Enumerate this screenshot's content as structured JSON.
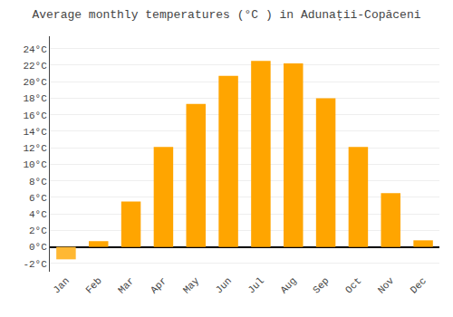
{
  "chart_data": {
    "type": "bar",
    "title": "Average monthly temperatures (°C ) in Adunații-Copăceni",
    "categories": [
      "Jan",
      "Feb",
      "Mar",
      "Apr",
      "May",
      "Jun",
      "Jul",
      "Aug",
      "Sep",
      "Oct",
      "Nov",
      "Dec"
    ],
    "values": [
      -1.5,
      0.7,
      5.5,
      12.1,
      17.3,
      20.7,
      22.5,
      22.2,
      18.0,
      12.1,
      6.5,
      0.8
    ],
    "colors": [
      "#FFB833",
      "#FFA500",
      "#FFA500",
      "#FFA500",
      "#FFA500",
      "#FFA500",
      "#FFA500",
      "#FFA500",
      "#FFA500",
      "#FFA500",
      "#FFA500",
      "#FFA500"
    ],
    "ylim": [
      -3,
      25.5
    ],
    "yticks": [
      {
        "value": -2,
        "label": "-2°C"
      },
      {
        "value": 0,
        "label": "0°C"
      },
      {
        "value": 2,
        "label": "2°C"
      },
      {
        "value": 4,
        "label": "4°C"
      },
      {
        "value": 6,
        "label": "6°C"
      },
      {
        "value": 8,
        "label": "8°C"
      },
      {
        "value": 10,
        "label": "10°C"
      },
      {
        "value": 12,
        "label": "12°C"
      },
      {
        "value": 14,
        "label": "14°C"
      },
      {
        "value": 16,
        "label": "16°C"
      },
      {
        "value": 18,
        "label": "18°C"
      },
      {
        "value": 20,
        "label": "20°C"
      },
      {
        "value": 22,
        "label": "22°C"
      },
      {
        "value": 24,
        "label": "24°C"
      }
    ],
    "grid": true
  }
}
